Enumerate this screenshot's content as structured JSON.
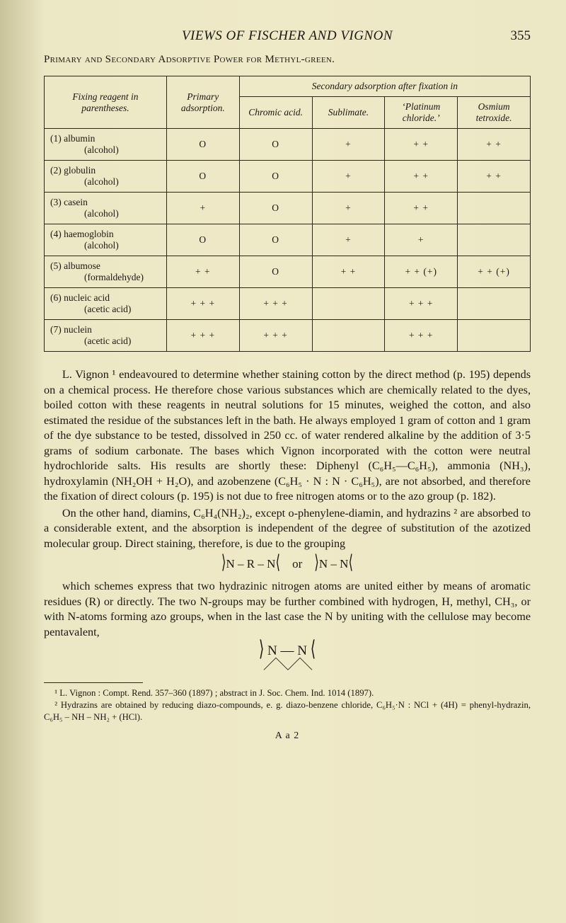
{
  "page": {
    "running_title": "VIEWS OF FISCHER AND VIGNON",
    "number": "355",
    "section_title": "Primary and Secondary Adsorptive Power for Methyl-green.",
    "signature": "A a 2"
  },
  "table": {
    "head": {
      "fixing": "Fixing reagent in parentheses.",
      "primary": "Primary adsorption.",
      "secondary_span": "Secondary adsorption after fixation in",
      "chromic": "Chromic acid.",
      "sublimate": "Sublimate.",
      "platinum": "‘Platinum chloride.’",
      "osmium": "Osmium tetroxide."
    },
    "rows": [
      {
        "label": "(1) albumin",
        "sub": "(alcohol)",
        "c": [
          "O",
          "O",
          "+",
          "+ +",
          "+ +"
        ]
      },
      {
        "label": "(2) globulin",
        "sub": "(alcohol)",
        "c": [
          "O",
          "O",
          "+",
          "+ +",
          "+ +"
        ]
      },
      {
        "label": "(3) casein",
        "sub": "(alcohol)",
        "c": [
          "+",
          "O",
          "+",
          "+ +",
          ""
        ]
      },
      {
        "label": "(4) haemoglobin",
        "sub": "(alcohol)",
        "c": [
          "O",
          "O",
          "+",
          "+",
          ""
        ]
      },
      {
        "label": "(5) albumose",
        "sub": "(formaldehyde)",
        "c": [
          "+ +",
          "O",
          "+ +",
          "+ + (+)",
          "+ + (+)"
        ]
      },
      {
        "label": "(6) nucleic acid",
        "sub": "(acetic acid)",
        "c": [
          "+ + +",
          "+ + +",
          "",
          "+ + +",
          ""
        ]
      },
      {
        "label": "(7) nuclein",
        "sub": "(acetic acid)",
        "c": [
          "+ + +",
          "+ + +",
          "",
          "+ + +",
          ""
        ]
      }
    ]
  },
  "paras": {
    "p1": "L. Vignon ¹ endeavoured to determine whether staining cotton by the direct method (p. 195) depends on a chemical process. He therefore chose various substances which are chemically related to the dyes, boiled cotton with these reagents in neutral solutions for 15 minutes, weighed the cotton, and also estimated the residue of the substances left in the bath. He always employed 1 gram of cotton and 1 gram of the dye substance to be tested, dissolved in 250 cc. of water rendered alkaline by the addition of 3·5 grams of sodium carbonate. The bases which Vignon incorporated with the cotton were neutral hydrochloride salts. His results are shortly these: Diphenyl (C₆H₅—C₆H₅), ammonia (NH₃), hydroxylamin (NH₂OH + H₂O), and azobenzene (C₆H₅ · N : N · C₆H₅), are not absorbed, and therefore the fixation of direct colours (p. 195) is not due to free nitrogen atoms or to the azo group (p. 182).",
    "p2": "On the other hand, diamins, C₆H₄(NH₂)₂, except o-phenylene-diamin, and hydrazins ² are absorbed to a considerable extent, and the absorption is independent of the degree of substitution of the azotized molecular group. Direct staining, therefore, is due to the grouping",
    "formula1": "⟩N – R – N⟨    or    ⟩N – N⟨",
    "p3": "which schemes express that two hydrazinic nitrogen atoms are united either by means of aromatic residues (R) or directly. The two N-groups may be further combined with hydrogen, H, methyl, CH₃, or with N-atoms forming azo groups, when in the last case the N by uniting with the cellulose may become pentavalent,",
    "formula2_top": "⟩ N — N ⟨",
    "formula2_bot": "⩘⩗⩘⩗"
  },
  "footnotes": {
    "f1": "¹ L. Vignon : Compt. Rend. 357–360 (1897) ; abstract in J. Soc. Chem. Ind. 1014 (1897).",
    "f2": "² Hydrazins are obtained by reducing diazo-compounds, e. g. diazo-benzene chloride, C₆H₅·N : NCl + (4H) = phenyl-hydrazin, C₆H₅ – NH – NH₂ + (HCl)."
  }
}
